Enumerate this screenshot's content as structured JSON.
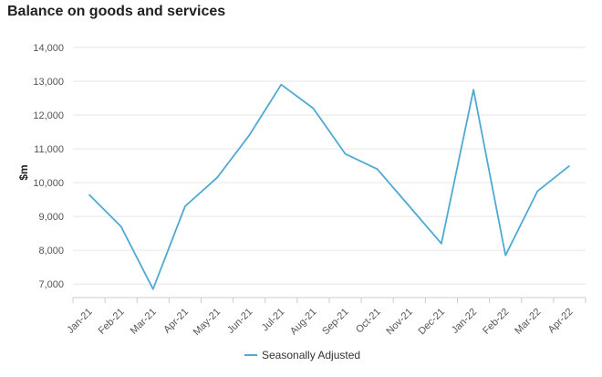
{
  "chart_data": {
    "type": "line",
    "title": "Balance on goods and services",
    "xlabel": "",
    "ylabel": "$m",
    "categories": [
      "Jan-21",
      "Feb-21",
      "Mar-21",
      "Apr-21",
      "May-21",
      "Jun-21",
      "Jul-21",
      "Aug-21",
      "Sep-21",
      "Oct-21",
      "Nov-21",
      "Dec-21",
      "Jan-22",
      "Feb-22",
      "Mar-22",
      "Apr-22"
    ],
    "series": [
      {
        "name": "Seasonally Adjusted",
        "color": "#4fa9d3",
        "values": [
          9650,
          8700,
          6850,
          9300,
          10150,
          11400,
          12900,
          12200,
          10850,
          10400,
          9300,
          8200,
          12750,
          7850,
          9750,
          10500
        ]
      }
    ],
    "ylim": [
      6600,
      14000
    ],
    "yticks": [
      7000,
      8000,
      9000,
      10000,
      11000,
      12000,
      13000,
      14000
    ],
    "ytick_labels": [
      "7,000",
      "8,000",
      "9,000",
      "10,000",
      "11,000",
      "12,000",
      "13,000",
      "14,000"
    ],
    "grid": true,
    "legend_position": "bottom-center"
  }
}
